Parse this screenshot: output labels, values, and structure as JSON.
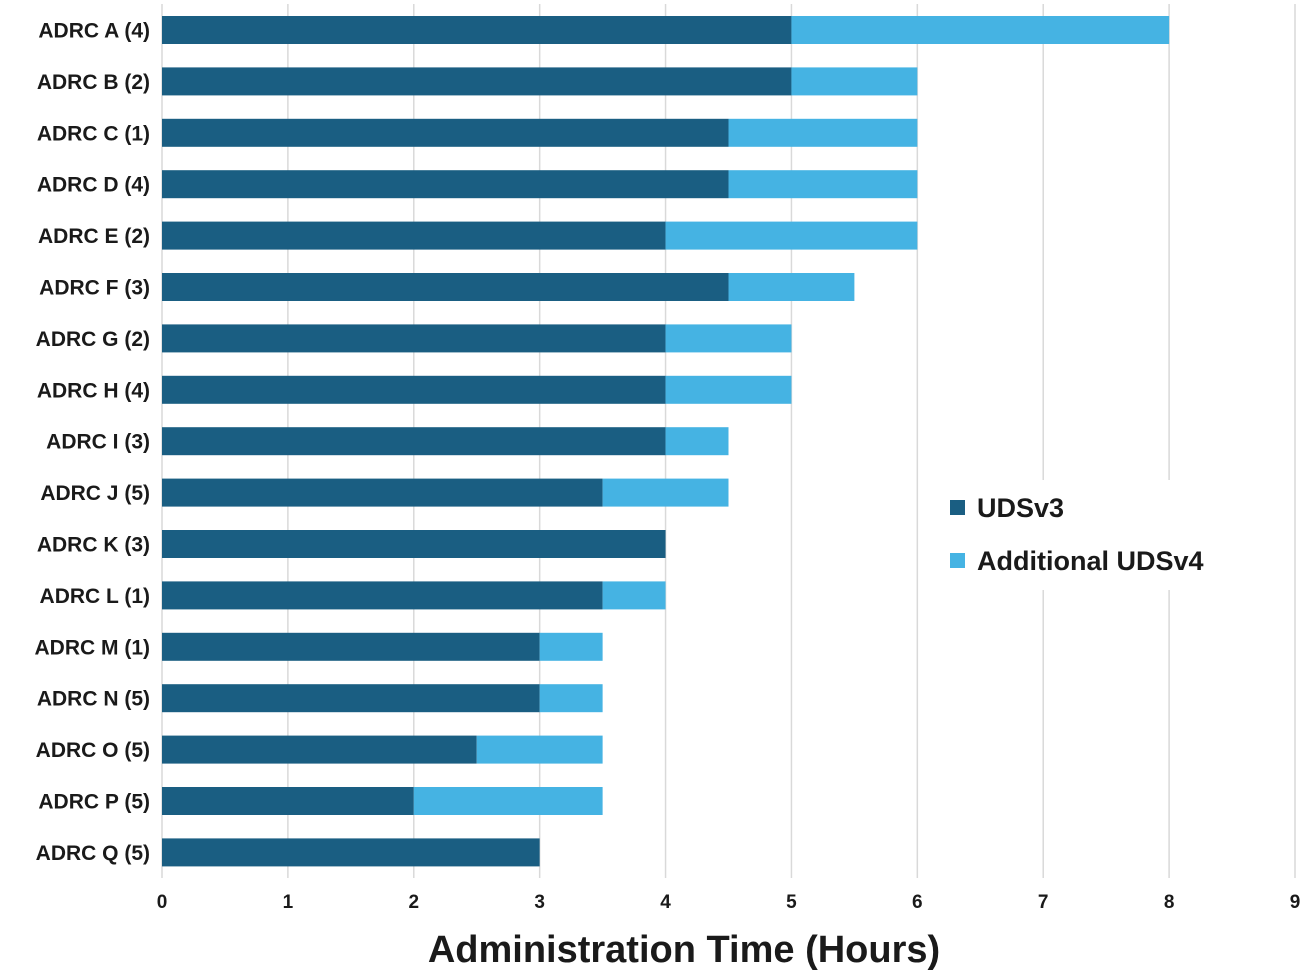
{
  "chart_data": {
    "type": "bar",
    "orientation": "horizontal",
    "stacked": true,
    "categories": [
      "ADRC A (4)",
      "ADRC B (2)",
      "ADRC C (1)",
      "ADRC D (4)",
      "ADRC E (2)",
      "ADRC F (3)",
      "ADRC G (2)",
      "ADRC H (4)",
      "ADRC I (3)",
      "ADRC J (5)",
      "ADRC K (3)",
      "ADRC L (1)",
      "ADRC M (1)",
      "ADRC N (5)",
      "ADRC O (5)",
      "ADRC P (5)",
      "ADRC Q (5)"
    ],
    "series": [
      {
        "name": "UDSv3",
        "color": "#1a5e82",
        "values": [
          5,
          5,
          4.5,
          4.5,
          4,
          4.5,
          4,
          4,
          4,
          3.5,
          4,
          3.5,
          3,
          3,
          2.5,
          2,
          3
        ]
      },
      {
        "name": "Additional UDSv4",
        "color": "#45b3e3",
        "values": [
          3,
          1,
          1.5,
          1.5,
          2,
          1,
          1,
          1,
          0.5,
          1,
          0,
          0.5,
          0.5,
          0.5,
          1,
          1.5,
          0
        ]
      }
    ],
    "xlabel": "Administration Time (Hours)",
    "ylabel": "",
    "xlim": [
      0,
      9
    ],
    "xticks": [
      "0",
      "1",
      "2",
      "3",
      "4",
      "5",
      "6",
      "7",
      "8",
      "9"
    ],
    "grid": "vertical",
    "legend_position": "right-middle"
  }
}
